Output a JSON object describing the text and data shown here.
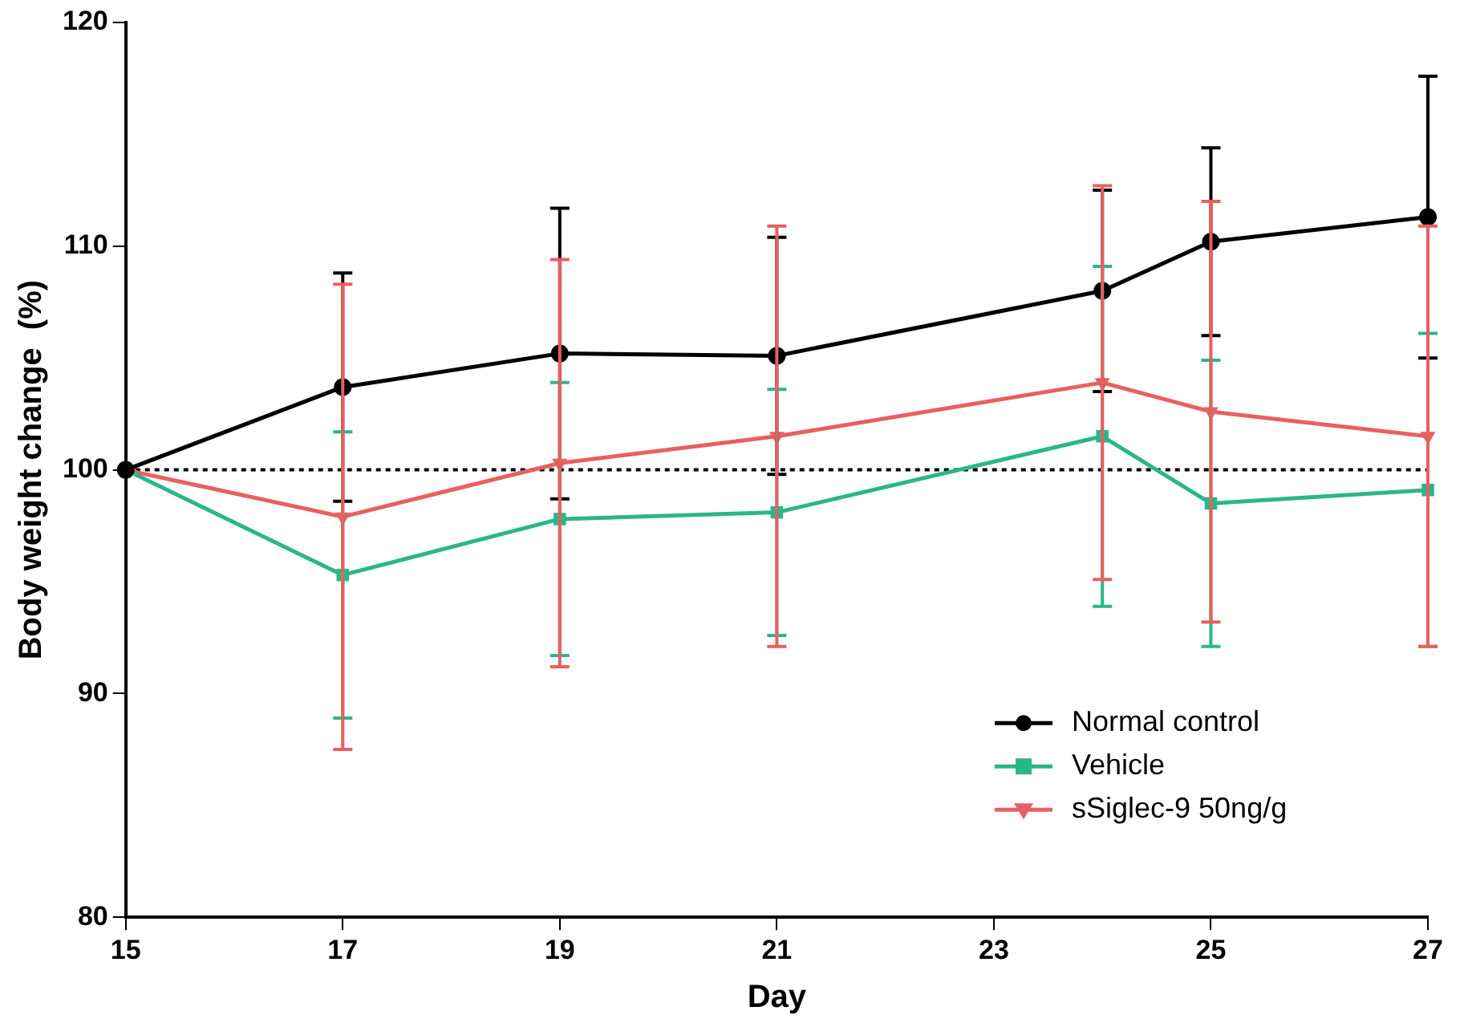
{
  "chart_data": {
    "type": "line",
    "xlabel": "Day",
    "ylabel": "Body weight change  (%)",
    "x": [
      15,
      17,
      19,
      21,
      24,
      25,
      27
    ],
    "xlim": [
      15,
      27
    ],
    "xticks": [
      15,
      17,
      19,
      21,
      23,
      25,
      27
    ],
    "ylim": [
      80,
      120
    ],
    "yticks": [
      80,
      90,
      100,
      110,
      120
    ],
    "grid": false,
    "legend": "bottom right",
    "ref_lines": [
      {
        "axis": "y",
        "value": 100,
        "color": "#000000",
        "line_style": "dotted"
      }
    ],
    "series": [
      {
        "name": "Normal control",
        "color": "#000000",
        "marker": "circle",
        "values": [
          100,
          103.7,
          105.2,
          105.1,
          108.0,
          110.2,
          111.3
        ],
        "errors": [
          null,
          5.1,
          6.5,
          5.3,
          4.5,
          4.2,
          6.3
        ]
      },
      {
        "name": "Vehicle",
        "color": "#2bb68a",
        "marker": "square",
        "values": [
          100,
          95.3,
          97.8,
          98.1,
          101.5,
          98.5,
          99.1
        ],
        "errors": [
          null,
          6.4,
          6.1,
          5.5,
          7.6,
          6.4,
          7.0
        ]
      },
      {
        "name": "sSiglec-9 50ng/g",
        "color": "#e8605f",
        "marker": "triangle",
        "values": [
          100,
          97.9,
          100.3,
          101.5,
          103.9,
          102.6,
          101.5
        ],
        "errors": [
          null,
          10.4,
          9.1,
          9.4,
          8.8,
          9.4,
          9.4
        ]
      }
    ]
  }
}
